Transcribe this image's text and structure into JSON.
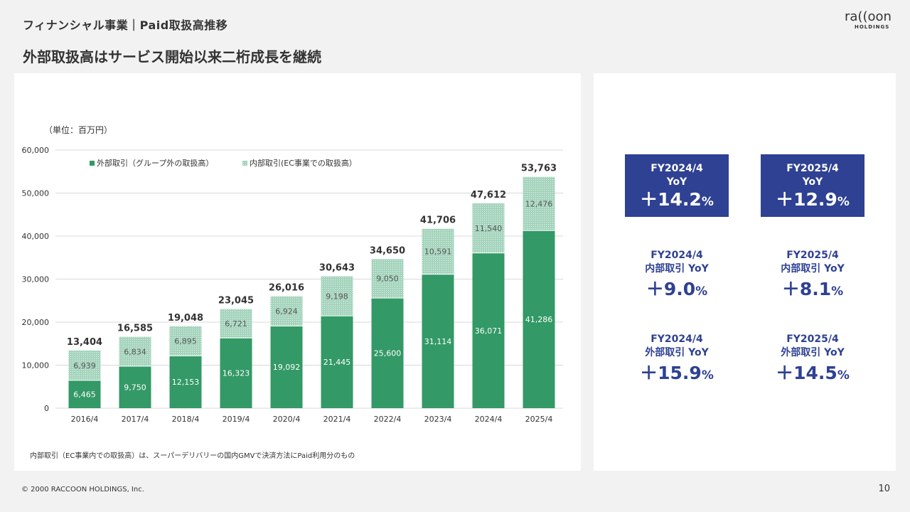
{
  "header": {
    "title": "フィナンシャル事業｜Paid取扱高推移",
    "subtitle": "外部取扱高はサービス開始以来二桁成長を継続"
  },
  "logo": {
    "main": "ra((oon",
    "sub": "HOLDINGS"
  },
  "unit_label": "（単位：百万円）",
  "note": "内部取引（EC事業内での取扱高）は、スーパーデリバリーの国内GMVで決済方法にPaid利用分のもの",
  "footer": "© 2000 RACCOON HOLDINGS, Inc.",
  "page_number": "10",
  "colors": {
    "external": "#339966",
    "internal": "#9dcfb6",
    "kpi_box": "#2e4193",
    "kpi_text": "#2e4193"
  },
  "chart_data": {
    "type": "bar",
    "stacked": true,
    "categories": [
      "2016/4",
      "2017/4",
      "2018/4",
      "2019/4",
      "2020/4",
      "2021/4",
      "2022/4",
      "2023/4",
      "2024/4",
      "2025/4"
    ],
    "series": [
      {
        "name": "外部取引（グループ外の取扱高）",
        "values": [
          6465,
          9750,
          12153,
          16323,
          19092,
          21445,
          25600,
          31114,
          36071,
          41286
        ]
      },
      {
        "name": "内部取引(EC事業での取扱高）",
        "values": [
          6939,
          6834,
          6895,
          6721,
          6924,
          9198,
          9050,
          10591,
          11540,
          12476
        ]
      }
    ],
    "totals": [
      13404,
      16585,
      19048,
      23045,
      26016,
      30643,
      34650,
      41706,
      47612,
      53763
    ],
    "yticks": [
      0,
      10000,
      20000,
      30000,
      40000,
      50000,
      60000
    ],
    "ylim": [
      0,
      60000
    ],
    "legend_position": "top-left",
    "grid": true
  },
  "kpis": {
    "box_fy2024": {
      "l1": "FY2024/4",
      "l2": "YoY",
      "sign": "＋",
      "num": "14.2",
      "pct": "%"
    },
    "box_fy2025": {
      "l1": "FY2025/4",
      "l2": "YoY",
      "sign": "＋",
      "num": "12.9",
      "pct": "%"
    },
    "internal_fy2024": {
      "l1": "FY2024/4",
      "l2": "内部取引 YoY",
      "sign": "＋",
      "num": "9.0",
      "pct": "%"
    },
    "internal_fy2025": {
      "l1": "FY2025/4",
      "l2": "内部取引 YoY",
      "sign": "＋",
      "num": "8.1",
      "pct": "%"
    },
    "external_fy2024": {
      "l1": "FY2024/4",
      "l2": "外部取引 YoY",
      "sign": "＋",
      "num": "15.9",
      "pct": "%"
    },
    "external_fy2025": {
      "l1": "FY2025/4",
      "l2": "外部取引 YoY",
      "sign": "＋",
      "num": "14.5",
      "pct": "%"
    }
  }
}
